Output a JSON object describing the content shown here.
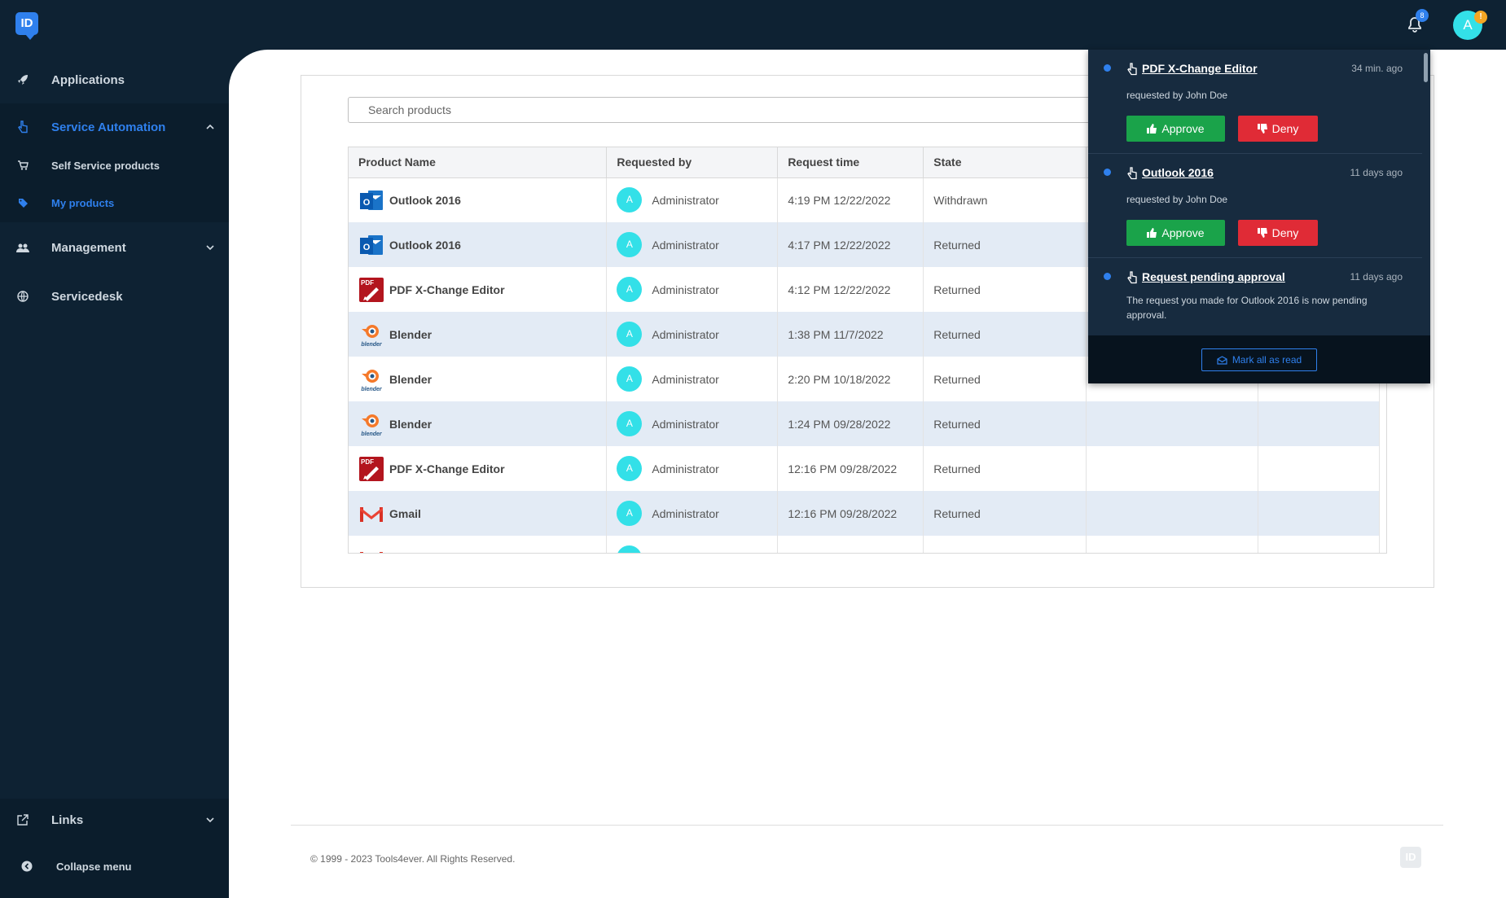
{
  "topbar": {
    "logo_text": "ID",
    "notification_count": "8",
    "user_initial": "A",
    "user_badge": "!"
  },
  "sidebar": {
    "items": [
      {
        "label": "Applications",
        "icon": "rocket-icon"
      },
      {
        "label": "Service Automation",
        "icon": "hand-pointer-icon"
      },
      {
        "label": "Self Service products",
        "icon": "cart-icon"
      },
      {
        "label": "My products",
        "icon": "tag-icon"
      },
      {
        "label": "Management",
        "icon": "users-icon"
      },
      {
        "label": "Servicedesk",
        "icon": "globe-icon"
      }
    ],
    "links_label": "Links",
    "collapse_label": "Collapse menu"
  },
  "search": {
    "placeholder": "Search products"
  },
  "table": {
    "headers": [
      "Product Name",
      "Requested by",
      "Request time",
      "State",
      "",
      ""
    ],
    "rows": [
      {
        "product": "Outlook 2016",
        "icon": "outlook",
        "initial": "A",
        "requested_by": "Administrator",
        "time": "4:19 PM 12/22/2022",
        "state": "Withdrawn"
      },
      {
        "product": "Outlook 2016",
        "icon": "outlook",
        "initial": "A",
        "requested_by": "Administrator",
        "time": "4:17 PM 12/22/2022",
        "state": "Returned"
      },
      {
        "product": "PDF X-Change Editor",
        "icon": "pdf",
        "initial": "A",
        "requested_by": "Administrator",
        "time": "4:12 PM 12/22/2022",
        "state": "Returned"
      },
      {
        "product": "Blender",
        "icon": "blender",
        "initial": "A",
        "requested_by": "Administrator",
        "time": "1:38 PM 11/7/2022",
        "state": "Returned"
      },
      {
        "product": "Blender",
        "icon": "blender",
        "initial": "A",
        "requested_by": "Administrator",
        "time": "2:20 PM 10/18/2022",
        "state": "Returned"
      },
      {
        "product": "Blender",
        "icon": "blender",
        "initial": "A",
        "requested_by": "Administrator",
        "time": "1:24 PM 09/28/2022",
        "state": "Returned"
      },
      {
        "product": "PDF X-Change Editor",
        "icon": "pdf",
        "initial": "A",
        "requested_by": "Administrator",
        "time": "12:16 PM 09/28/2022",
        "state": "Returned"
      },
      {
        "product": "Gmail",
        "icon": "gmail",
        "initial": "A",
        "requested_by": "Administrator",
        "time": "12:16 PM 09/28/2022",
        "state": "Returned"
      }
    ]
  },
  "notifications": {
    "items": [
      {
        "title": "PDF X-Change Editor",
        "time": "34 min. ago",
        "sub": "requested by John Doe",
        "approve": "Approve",
        "deny": "Deny"
      },
      {
        "title": "Outlook 2016",
        "time": "11 days ago",
        "sub": "requested by John Doe",
        "approve": "Approve",
        "deny": "Deny"
      },
      {
        "title": "Request pending approval",
        "time": "11 days ago",
        "sub": "The request you made for Outlook 2016 is now pending approval."
      }
    ],
    "mark_all_label": "Mark all as read"
  },
  "footer": {
    "copyright": "© 1999 - 2023 Tools4ever. All Rights Reserved.",
    "logo_text": "ID"
  },
  "colors": {
    "navy": "#0e2233",
    "accent": "#2f80ed",
    "approve": "#1aa34a",
    "deny": "#e02b36",
    "avatar": "#33e0e8"
  }
}
